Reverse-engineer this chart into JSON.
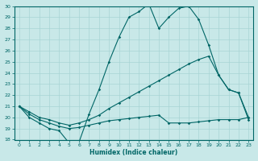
{
  "xlabel": "Humidex (Indice chaleur)",
  "ylabel": "",
  "background_color": "#c8e8e8",
  "line_color": "#006666",
  "xlim": [
    -0.5,
    23.5
  ],
  "ylim": [
    18,
    30
  ],
  "yticks": [
    18,
    19,
    20,
    21,
    22,
    23,
    24,
    25,
    26,
    27,
    28,
    29,
    30
  ],
  "xticks": [
    0,
    1,
    2,
    3,
    4,
    5,
    6,
    7,
    8,
    9,
    10,
    11,
    12,
    13,
    14,
    15,
    16,
    17,
    18,
    19,
    20,
    21,
    22,
    23
  ],
  "line1_x": [
    0,
    1,
    2,
    3,
    4,
    5,
    6,
    7,
    8,
    9,
    10,
    11,
    12,
    13,
    14,
    15,
    16,
    17,
    18,
    19,
    20,
    21,
    22,
    23
  ],
  "line1_y": [
    21.0,
    20.0,
    19.5,
    19.0,
    18.8,
    17.7,
    17.8,
    20.3,
    22.5,
    25.0,
    27.2,
    29.0,
    29.5,
    30.2,
    28.0,
    29.0,
    29.8,
    30.0,
    28.8,
    26.5,
    23.8,
    22.5,
    22.2,
    19.8
  ],
  "line2_x": [
    0,
    1,
    2,
    3,
    4,
    5,
    6,
    7,
    8,
    9,
    10,
    11,
    12,
    13,
    14,
    15,
    16,
    17,
    18,
    19,
    20,
    21,
    22,
    23
  ],
  "line2_y": [
    21.0,
    20.5,
    20.0,
    19.8,
    19.5,
    19.3,
    19.5,
    19.8,
    20.2,
    20.8,
    21.3,
    21.8,
    22.3,
    22.8,
    23.3,
    23.8,
    24.3,
    24.8,
    25.2,
    25.5,
    23.8,
    22.5,
    22.2,
    20.0
  ],
  "line3_x": [
    0,
    1,
    2,
    3,
    4,
    5,
    6,
    7,
    8,
    9,
    10,
    11,
    12,
    13,
    14,
    15,
    16,
    17,
    18,
    19,
    20,
    21,
    22,
    23
  ],
  "line3_y": [
    21.0,
    20.3,
    19.8,
    19.5,
    19.2,
    19.0,
    19.1,
    19.3,
    19.5,
    19.7,
    19.8,
    19.9,
    20.0,
    20.1,
    20.2,
    19.5,
    19.5,
    19.5,
    19.6,
    19.7,
    19.8,
    19.8,
    19.8,
    20.0
  ]
}
